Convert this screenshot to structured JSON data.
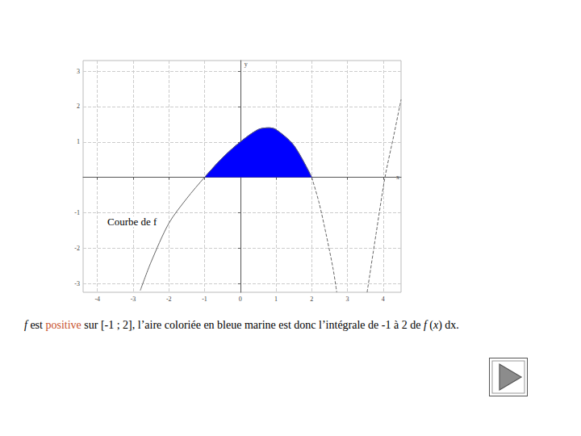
{
  "chart_data": {
    "type": "line",
    "annotation": "Courbe de f",
    "x_label": "x",
    "y_label": "y",
    "x": [
      -2.8,
      -2.5,
      -2,
      -1.5,
      -1,
      -0.5,
      0,
      0.5,
      0.8,
      1,
      1.5,
      2,
      2.2,
      2.4,
      2.6,
      2.7,
      3.1,
      3.55,
      3.8,
      4.05,
      4.3,
      4.5
    ],
    "series": [
      {
        "type": "line",
        "color": "#666666",
        "line_style": "solid",
        "values": [
          -3.2,
          -2.4,
          -1.3,
          -0.6,
          0,
          0.55,
          1,
          1.35,
          1.4,
          1.35,
          0.9,
          0,
          null,
          null,
          null,
          null,
          null,
          null,
          null,
          null,
          null,
          null
        ]
      },
      {
        "type": "line",
        "color": "#666666",
        "line_style": "dashed",
        "values": [
          null,
          null,
          null,
          null,
          null,
          null,
          null,
          null,
          null,
          null,
          null,
          0,
          -0.7,
          -1.6,
          -2.6,
          -3.25,
          null,
          -3.25,
          -1.6,
          0,
          1.2,
          2.2
        ]
      },
      {
        "type": "area",
        "color": "#0000ff",
        "line_style": "solid",
        "values": [
          null,
          null,
          null,
          null,
          0,
          0.55,
          1,
          1.35,
          1.4,
          1.35,
          0.9,
          0,
          null,
          null,
          null,
          null,
          null,
          null,
          null,
          null,
          null,
          null
        ]
      }
    ],
    "xlim": [
      -4.4,
      4.5
    ],
    "xticks": [
      -4,
      -3,
      -2,
      -1,
      0,
      1,
      2,
      3,
      4
    ],
    "ylim": [
      -3.25,
      3.3
    ],
    "yticks": [
      -3,
      -2,
      -1,
      1,
      2,
      3
    ],
    "grid": true
  },
  "caption": [
    {
      "text": "f",
      "italic": true
    },
    {
      "text": " est "
    },
    {
      "text": "positive",
      "color": "#c8502a"
    },
    {
      "text": " sur [-1 ; 2], l’aire coloriée en bleue marine est donc l’intégrale de -1 à 2 de "
    },
    {
      "text": "f",
      "italic": true
    },
    {
      "text": " ("
    },
    {
      "text": "x",
      "italic": true
    },
    {
      "text": ") dx."
    }
  ]
}
